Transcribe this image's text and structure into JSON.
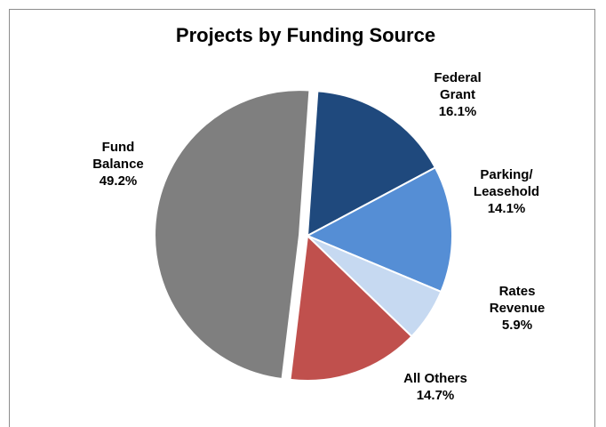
{
  "chart_data": {
    "type": "pie",
    "title": "Projects by Funding Source",
    "slices": [
      {
        "label": [
          "Federal",
          "Grant"
        ],
        "value": 16.1,
        "value_label": "16.1%",
        "color": "#1F497D"
      },
      {
        "label": [
          "Parking/",
          "Leasehold"
        ],
        "value": 14.1,
        "value_label": "14.1%",
        "color": "#558ED5"
      },
      {
        "label": [
          "Rates",
          "Revenue"
        ],
        "value": 5.9,
        "value_label": "5.9%",
        "color": "#C6D9F1"
      },
      {
        "label": [
          "All Others"
        ],
        "value": 14.7,
        "value_label": "14.7%",
        "color": "#C0504D"
      },
      {
        "label": [
          "Fund",
          "Balance"
        ],
        "value": 49.2,
        "value_label": "49.2%",
        "color": "#7F7F7F"
      }
    ],
    "start_angle_deg": 4,
    "exploded_slice": "Fund Balance",
    "legend": "none"
  }
}
